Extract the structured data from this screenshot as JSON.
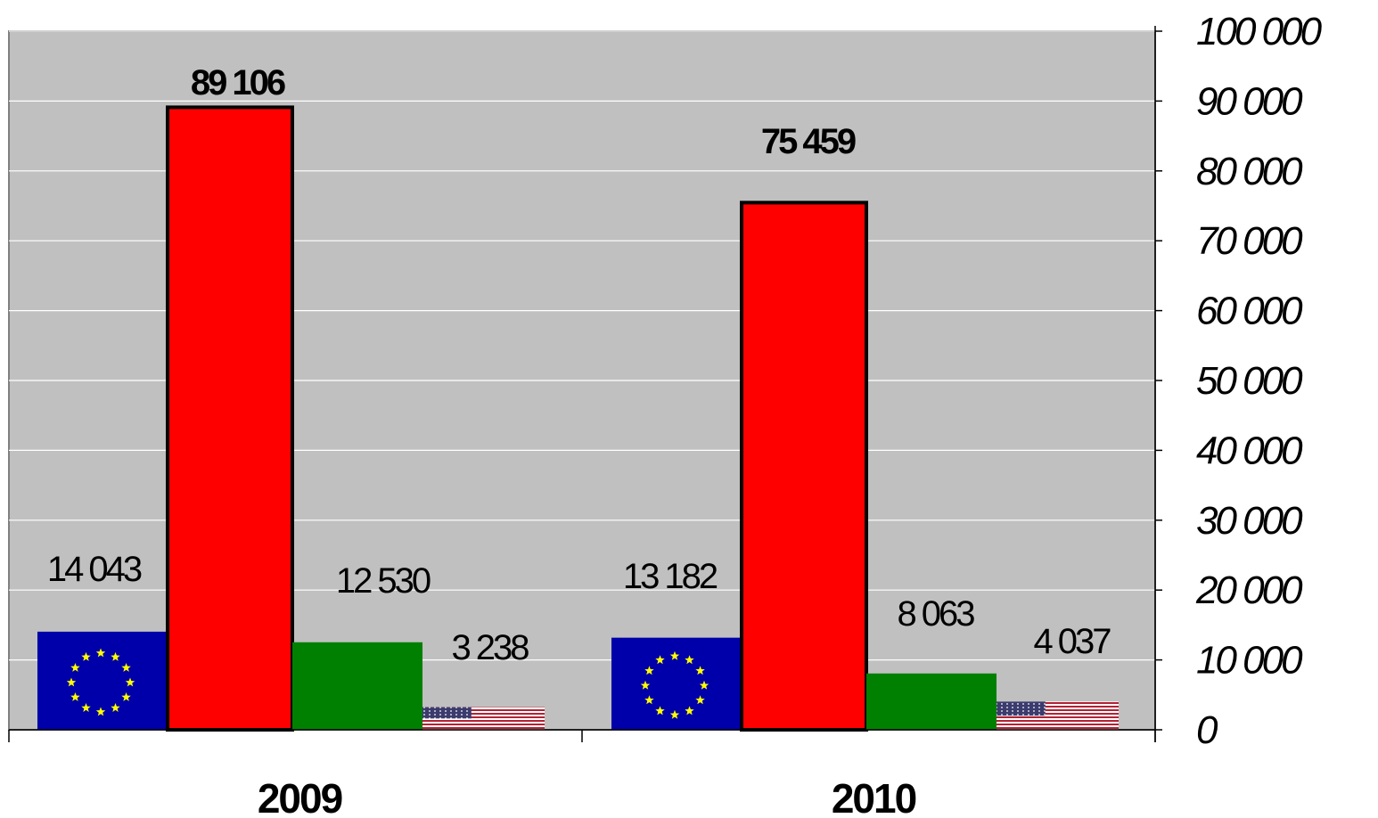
{
  "chart_data": {
    "type": "bar",
    "categories": [
      "2009",
      "2010"
    ],
    "series": [
      {
        "icon": "eu-flag-icon",
        "values": [
          14043,
          13182
        ],
        "labels": [
          "14 043",
          "13 182"
        ],
        "color": "#0000aa",
        "bold_labels": false
      },
      {
        "icon": "red-bar",
        "values": [
          89106,
          75459
        ],
        "labels": [
          "89 106",
          "75 459"
        ],
        "color": "#ff0000",
        "bold_labels": true
      },
      {
        "icon": "green-bar",
        "values": [
          12530,
          8063
        ],
        "labels": [
          "12 530",
          "8 063"
        ],
        "color": "#008000",
        "bold_labels": false
      },
      {
        "icon": "us-flag-icon",
        "values": [
          3238,
          4037
        ],
        "labels": [
          "3 238",
          "4 037"
        ],
        "color": "#b22234",
        "bold_labels": false
      }
    ],
    "ylim": [
      0,
      100000
    ],
    "yticks": [
      0,
      10000,
      20000,
      30000,
      40000,
      50000,
      60000,
      70000,
      80000,
      90000,
      100000
    ],
    "ytick_labels": [
      "0",
      "10 000",
      "20 000",
      "30 000",
      "40 000",
      "50 000",
      "60 000",
      "70 000",
      "80 000",
      "90 000",
      "100 000"
    ],
    "yaxis_side": "right",
    "grid": true,
    "plot_background": "#c0c0c0",
    "legend": "none"
  }
}
